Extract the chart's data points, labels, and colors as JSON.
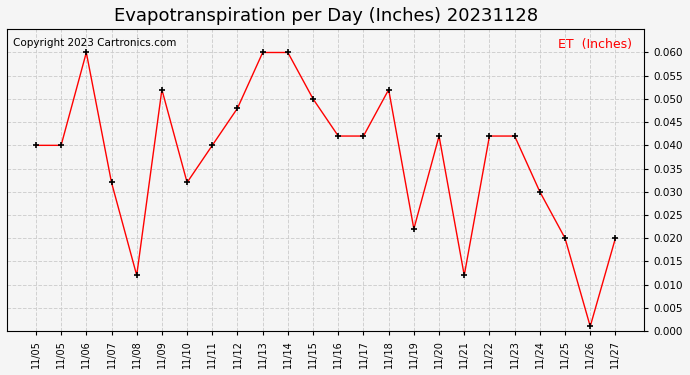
{
  "title": "Evapotranspiration per Day (Inches) 20231128",
  "copyright_text": "Copyright 2023 Cartronics.com",
  "legend_label": "ET  (Inches)",
  "x_labels": [
    "11/05",
    "11/05",
    "11/06",
    "11/07",
    "11/08",
    "11/09",
    "11/10",
    "11/11",
    "11/12",
    "11/13",
    "11/14",
    "11/15",
    "11/16",
    "11/17",
    "11/18",
    "11/19",
    "11/20",
    "11/21",
    "11/22",
    "11/23",
    "11/24",
    "11/25",
    "11/26",
    "11/27"
  ],
  "y_values": [
    0.04,
    0.04,
    0.06,
    0.032,
    0.012,
    0.052,
    0.032,
    0.04,
    0.048,
    0.06,
    0.06,
    0.05,
    0.042,
    0.042,
    0.052,
    0.022,
    0.042,
    0.012,
    0.042,
    0.042,
    0.03,
    0.02,
    0.001,
    0.02
  ],
  "ylim": [
    0.0,
    0.065
  ],
  "yticks": [
    0.0,
    0.005,
    0.01,
    0.015,
    0.02,
    0.025,
    0.03,
    0.035,
    0.04,
    0.045,
    0.05,
    0.055,
    0.06
  ],
  "line_color": "red",
  "marker": "+",
  "marker_color": "black",
  "grid_color": "#cccccc",
  "background_color": "#f5f5f5",
  "title_fontsize": 13,
  "legend_color": "red",
  "copyright_fontsize": 7.5
}
